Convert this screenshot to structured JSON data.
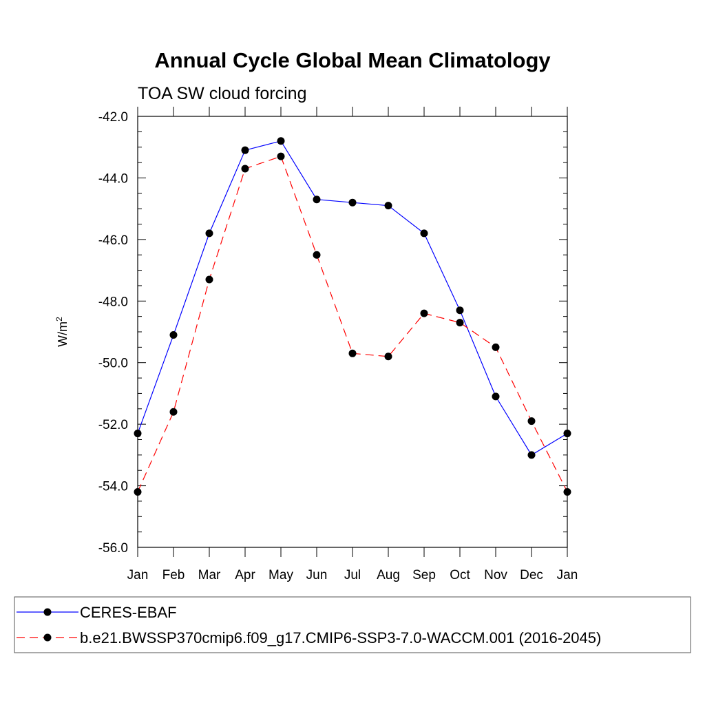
{
  "chart_data": {
    "type": "line",
    "title": "Annual Cycle Global Mean Climatology",
    "subtitle": "TOA SW cloud forcing",
    "xlabel": "",
    "ylabel": "W/m",
    "ylabel_superscript": "2",
    "categories": [
      "Jan",
      "Feb",
      "Mar",
      "Apr",
      "May",
      "Jun",
      "Jul",
      "Aug",
      "Sep",
      "Oct",
      "Nov",
      "Dec",
      "Jan"
    ],
    "y_ticks": [
      "-42.0",
      "-44.0",
      "-46.0",
      "-48.0",
      "-50.0",
      "-52.0",
      "-54.0",
      "-56.0"
    ],
    "y_tick_values": [
      -42,
      -44,
      -46,
      -48,
      -50,
      -52,
      -54,
      -56
    ],
    "ylim": [
      -56,
      -42
    ],
    "grid": false,
    "legend_position": "bottom",
    "series": [
      {
        "name": "CERES-EBAF",
        "color": "#0000ff",
        "line_style": "solid",
        "values": [
          -52.3,
          -49.1,
          -45.8,
          -43.1,
          -42.8,
          -44.7,
          -44.8,
          -44.9,
          -45.8,
          -48.3,
          -51.1,
          -53.0,
          -52.3
        ]
      },
      {
        "name": "b.e21.BWSSP370cmip6.f09_g17.CMIP6-SSP3-7.0-WACCM.001 (2016-2045)",
        "color": "#ff0000",
        "line_style": "dashed",
        "values": [
          -54.2,
          -51.6,
          -47.3,
          -43.7,
          -43.3,
          -46.5,
          -49.7,
          -49.8,
          -48.4,
          -48.7,
          -49.5,
          -51.9,
          -54.2
        ]
      }
    ]
  }
}
